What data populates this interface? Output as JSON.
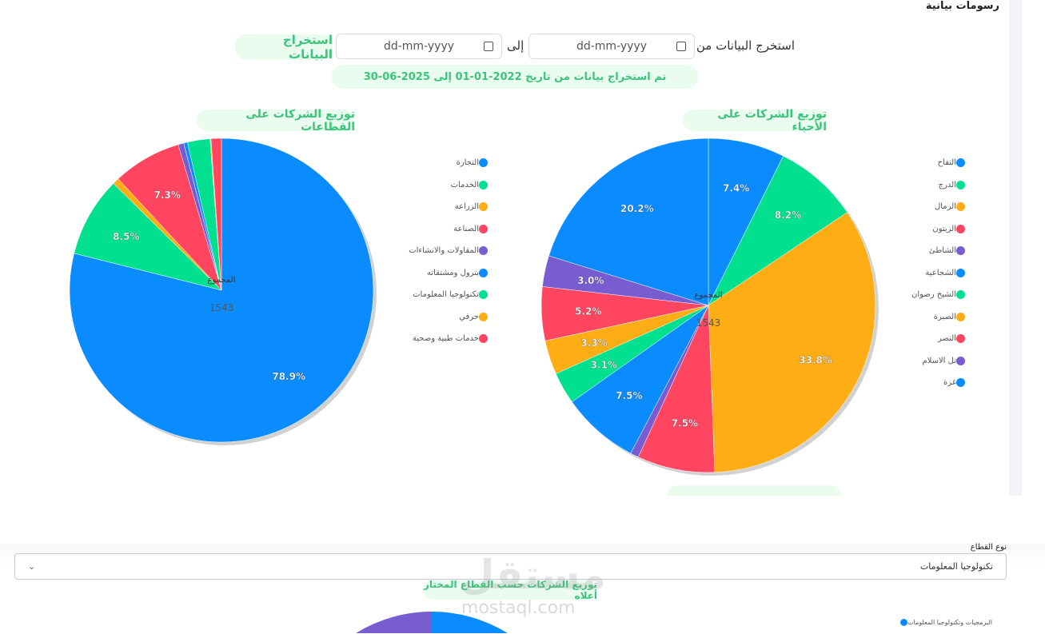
{
  "header": {
    "title": "رسومات بيانية"
  },
  "filter": {
    "from_label": "استخرج البيانات من",
    "to_label": "إلى",
    "from_placeholder": "dd-mm-yyyy",
    "to_placeholder": "dd-mm-yyyy",
    "extract_button": "استخراج البيانات",
    "status": "تم استخراج بيانات من تاريخ 2022-01-01 إلى 2025-06-30"
  },
  "chart_data": [
    {
      "type": "pie",
      "title": "توزيع الشركات على الأحياء",
      "center_label": "المجموع",
      "total": "1543",
      "categories": [
        "التفاح",
        "الدرج",
        "الرمال",
        "الزيتون",
        "الشاطئ",
        "الشجاعية",
        "الشيخ رضوان",
        "الصبرة",
        "النصر",
        "تل الاسلام",
        "غزة"
      ],
      "values": [
        7.4,
        8.2,
        33.8,
        7.5,
        0.8,
        7.5,
        3.1,
        3.3,
        5.2,
        3.0,
        20.2
      ],
      "colors": [
        "#0a8cff",
        "#00e08e",
        "#ffad15",
        "#ff4560",
        "#775dd0",
        "#0a8cff",
        "#00e08e",
        "#ffad15",
        "#ff4560",
        "#775dd0",
        "#0a8cff"
      ]
    },
    {
      "type": "pie",
      "title": "توزيع الشركات على القطاعات",
      "center_label": "المجموع",
      "total": "1543",
      "categories": [
        "التجارة",
        "الخدمات",
        "الزراعة",
        "الصناعة",
        "المقاولات والانشاءات",
        "بترول ومشتقاته",
        "تكنولوجيا المعلومات",
        "حرفي",
        "خدمات طبية وصحية"
      ],
      "values": [
        78.9,
        8.5,
        0.7,
        7.3,
        0.6,
        0.4,
        2.4,
        0.1,
        1.1
      ],
      "colors": [
        "#0a8cff",
        "#00e08e",
        "#ffad15",
        "#ff4560",
        "#775dd0",
        "#0a8cff",
        "#00e08e",
        "#ffad15",
        "#ff4560"
      ]
    }
  ],
  "sector": {
    "label": "نوع القطاع",
    "selected": "تكنولوجيا المعلومات",
    "chart_title": "توزيع الشركات حسب القطاع المختار أعلاه",
    "legend": [
      "البرمجيات وتكنولوجيا المعلومات"
    ]
  },
  "watermark": {
    "text": "مستقل",
    "url": "mostaql.com"
  }
}
